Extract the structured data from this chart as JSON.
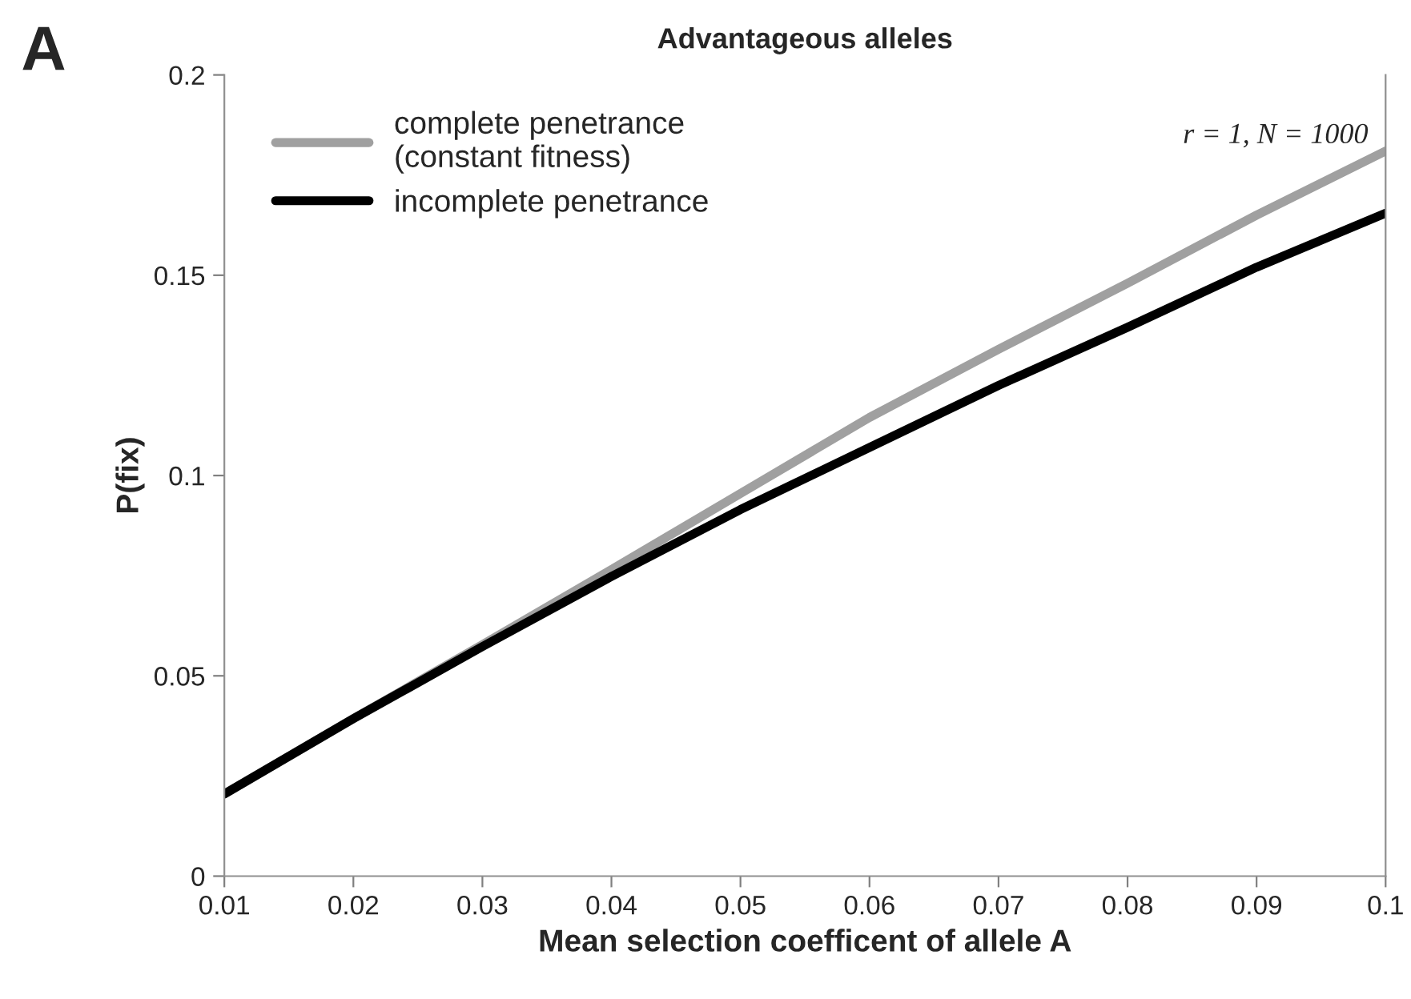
{
  "chart_data": {
    "type": "line",
    "title": "Advantageous alleles",
    "xlabel": "Mean selection coefficent of allele A",
    "ylabel": "P(fix)",
    "x": [
      0.01,
      0.02,
      0.03,
      0.04,
      0.05,
      0.06,
      0.07,
      0.08,
      0.09,
      0.1
    ],
    "series": [
      {
        "name": "complete penetrance\n(constant fitness)",
        "color": "#a0a0a0",
        "values": [
          0.0205,
          0.0393,
          0.0578,
          0.0765,
          0.0955,
          0.1145,
          0.1315,
          0.148,
          0.165,
          0.181
        ]
      },
      {
        "name": "incomplete penetrance",
        "color": "#000000",
        "values": [
          0.0205,
          0.0393,
          0.0573,
          0.0748,
          0.0915,
          0.107,
          0.1225,
          0.137,
          0.152,
          0.1655
        ]
      }
    ],
    "xlim": [
      0.01,
      0.1
    ],
    "xticks": [
      0.01,
      0.02,
      0.03,
      0.04,
      0.05,
      0.06,
      0.07,
      0.08,
      0.09,
      0.1
    ],
    "ylim": [
      0,
      0.2
    ],
    "yticks": [
      0,
      0.05,
      0.1,
      0.15,
      0.2
    ],
    "annotations": [
      "A",
      "r = 1, N = 1000"
    ],
    "legend": "top left",
    "grid": false,
    "marker": "none",
    "line_style": "solid"
  }
}
